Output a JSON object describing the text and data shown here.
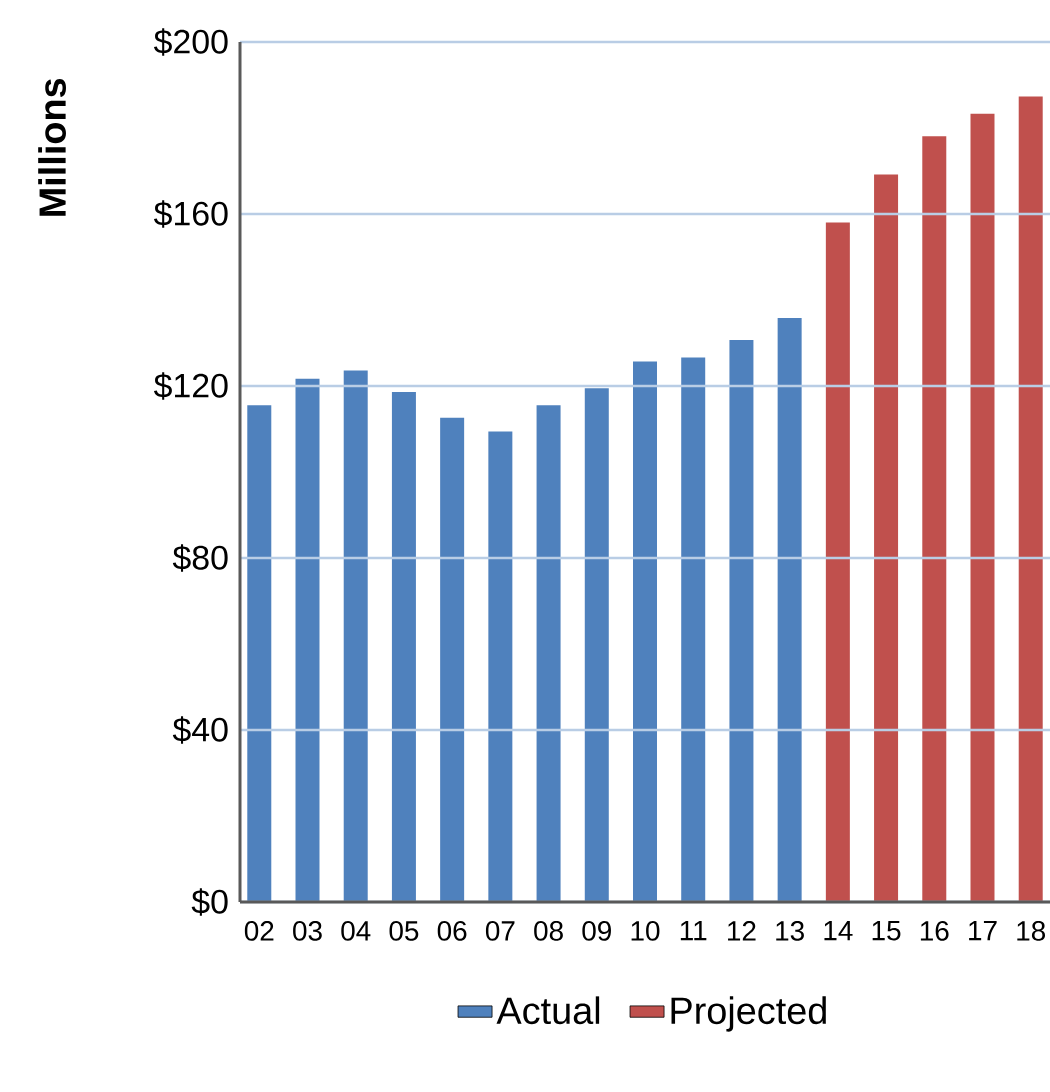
{
  "chart_data": {
    "type": "bar",
    "ylabel": "Millions",
    "categories": [
      "02",
      "03",
      "04",
      "05",
      "06",
      "07",
      "08",
      "09",
      "10",
      "11",
      "12",
      "13",
      "14",
      "15",
      "16",
      "17",
      "18"
    ],
    "series": [
      {
        "name": "Actual",
        "color": "#4f81bd",
        "values": [
          115.5,
          121.7,
          123.6,
          118.6,
          112.6,
          109.4,
          115.5,
          119.5,
          125.7,
          126.6,
          130.7,
          135.8,
          null,
          null,
          null,
          null,
          null
        ]
      },
      {
        "name": "Projected",
        "color": "#c0504d",
        "values": [
          null,
          null,
          null,
          null,
          null,
          null,
          null,
          null,
          null,
          null,
          null,
          null,
          158,
          169.2,
          178.1,
          183.3,
          187.3
        ]
      }
    ],
    "ylim": [
      0,
      200
    ],
    "yticks": [
      {
        "value": 0,
        "label": "$0"
      },
      {
        "value": 40,
        "label": "$40"
      },
      {
        "value": 80,
        "label": "$80"
      },
      {
        "value": 120,
        "label": "$120"
      },
      {
        "value": 160,
        "label": "$160"
      },
      {
        "value": 200,
        "label": "$200"
      }
    ],
    "grid": "y",
    "legend": "bottom"
  }
}
